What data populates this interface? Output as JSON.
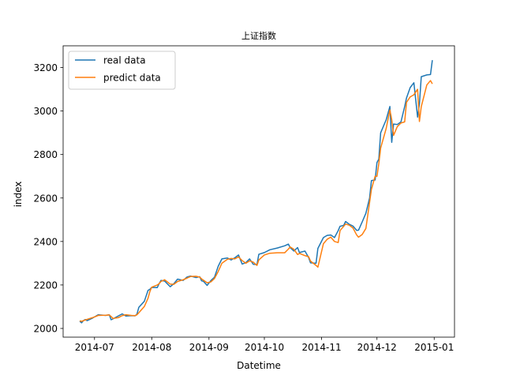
{
  "chart_data": {
    "type": "line",
    "title": "上证指数",
    "xlabel": "Datetime",
    "ylabel": "index",
    "xlim": [
      "2014-06-14",
      "2015-01-12"
    ],
    "ylim": [
      1960,
      3300
    ],
    "x_ticks": [
      {
        "date": "2014-07-01",
        "label": "2014-07"
      },
      {
        "date": "2014-08-01",
        "label": "2014-08"
      },
      {
        "date": "2014-09-01",
        "label": "2014-09"
      },
      {
        "date": "2014-10-01",
        "label": "2014-10"
      },
      {
        "date": "2014-11-01",
        "label": "2014-11"
      },
      {
        "date": "2014-12-01",
        "label": "2014-12"
      },
      {
        "date": "2015-01-01",
        "label": "2015-01"
      }
    ],
    "y_ticks": [
      2000,
      2200,
      2400,
      2600,
      2800,
      3000,
      3200
    ],
    "grid": false,
    "legend": {
      "placement": "upper-left"
    },
    "series": [
      {
        "name": "real data",
        "color": "#1f77b4",
        "points": [
          [
            "2014-06-23",
            2033
          ],
          [
            "2014-06-24",
            2026
          ],
          [
            "2014-06-25",
            2036
          ],
          [
            "2014-06-26",
            2041
          ],
          [
            "2014-06-27",
            2036
          ],
          [
            "2014-06-30",
            2048
          ],
          [
            "2014-07-02",
            2058
          ],
          [
            "2014-07-03",
            2063
          ],
          [
            "2014-07-07",
            2060
          ],
          [
            "2014-07-09",
            2063
          ],
          [
            "2014-07-10",
            2040
          ],
          [
            "2014-07-11",
            2044
          ],
          [
            "2014-07-14",
            2058
          ],
          [
            "2014-07-16",
            2067
          ],
          [
            "2014-07-18",
            2057
          ],
          [
            "2014-07-21",
            2059
          ],
          [
            "2014-07-23",
            2058
          ],
          [
            "2014-07-24",
            2066
          ],
          [
            "2014-07-25",
            2097
          ],
          [
            "2014-07-28",
            2125
          ],
          [
            "2014-07-30",
            2175
          ],
          [
            "2014-07-31",
            2180
          ],
          [
            "2014-08-01",
            2189
          ],
          [
            "2014-08-04",
            2188
          ],
          [
            "2014-08-05",
            2206
          ],
          [
            "2014-08-06",
            2221
          ],
          [
            "2014-08-08",
            2218
          ],
          [
            "2014-08-11",
            2192
          ],
          [
            "2014-08-13",
            2206
          ],
          [
            "2014-08-15",
            2227
          ],
          [
            "2014-08-18",
            2221
          ],
          [
            "2014-08-20",
            2236
          ],
          [
            "2014-08-22",
            2241
          ],
          [
            "2014-08-25",
            2234
          ],
          [
            "2014-08-27",
            2238
          ],
          [
            "2014-08-28",
            2219
          ],
          [
            "2014-08-29",
            2217
          ],
          [
            "2014-08-31",
            2198
          ],
          [
            "2014-09-02",
            2220
          ],
          [
            "2014-09-04",
            2236
          ],
          [
            "2014-09-06",
            2286
          ],
          [
            "2014-09-08",
            2320
          ],
          [
            "2014-09-11",
            2324
          ],
          [
            "2014-09-13",
            2315
          ],
          [
            "2014-09-15",
            2325
          ],
          [
            "2014-09-17",
            2338
          ],
          [
            "2014-09-19",
            2296
          ],
          [
            "2014-09-21",
            2303
          ],
          [
            "2014-09-23",
            2320
          ],
          [
            "2014-09-25",
            2295
          ],
          [
            "2014-09-27",
            2294
          ],
          [
            "2014-09-28",
            2341
          ],
          [
            "2014-10-01",
            2349
          ],
          [
            "2014-10-04",
            2362
          ],
          [
            "2014-10-08",
            2370
          ],
          [
            "2014-10-12",
            2380
          ],
          [
            "2014-10-14",
            2388
          ],
          [
            "2014-10-15",
            2372
          ],
          [
            "2014-10-17",
            2356
          ],
          [
            "2014-10-19",
            2372
          ],
          [
            "2014-10-20",
            2349
          ],
          [
            "2014-10-23",
            2356
          ],
          [
            "2014-10-25",
            2326
          ],
          [
            "2014-10-26",
            2302
          ],
          [
            "2014-10-29",
            2300
          ],
          [
            "2014-10-30",
            2368
          ],
          [
            "2014-11-02",
            2418
          ],
          [
            "2014-11-04",
            2428
          ],
          [
            "2014-11-06",
            2430
          ],
          [
            "2014-11-08",
            2418
          ],
          [
            "2014-11-10",
            2450
          ],
          [
            "2014-11-11",
            2470
          ],
          [
            "2014-11-13",
            2474
          ],
          [
            "2014-11-14",
            2492
          ],
          [
            "2014-11-16",
            2479
          ],
          [
            "2014-11-18",
            2471
          ],
          [
            "2014-11-20",
            2451
          ],
          [
            "2014-11-21",
            2452
          ],
          [
            "2014-11-23",
            2490
          ],
          [
            "2014-11-25",
            2530
          ],
          [
            "2014-11-27",
            2600
          ],
          [
            "2014-11-28",
            2680
          ],
          [
            "2014-11-30",
            2683
          ],
          [
            "2014-12-01",
            2763
          ],
          [
            "2014-12-02",
            2779
          ],
          [
            "2014-12-03",
            2900
          ],
          [
            "2014-12-06",
            2960
          ],
          [
            "2014-12-08",
            3021
          ],
          [
            "2014-12-09",
            2856
          ],
          [
            "2014-12-10",
            2940
          ],
          [
            "2014-12-12",
            2938
          ],
          [
            "2014-12-14",
            2950
          ],
          [
            "2014-12-16",
            3020
          ],
          [
            "2014-12-17",
            3060
          ],
          [
            "2014-12-19",
            3108
          ],
          [
            "2014-12-21",
            3130
          ],
          [
            "2014-12-23",
            2972
          ],
          [
            "2014-12-24",
            3032
          ],
          [
            "2014-12-25",
            3158
          ],
          [
            "2014-12-28",
            3166
          ],
          [
            "2014-12-30",
            3168
          ],
          [
            "2014-12-31",
            3234
          ]
        ]
      },
      {
        "name": "predict data",
        "color": "#ff7f0e",
        "points": [
          [
            "2014-06-23",
            2035
          ],
          [
            "2014-06-24",
            2033
          ],
          [
            "2014-06-25",
            2036
          ],
          [
            "2014-06-26",
            2039
          ],
          [
            "2014-06-27",
            2042
          ],
          [
            "2014-06-30",
            2050
          ],
          [
            "2014-07-02",
            2056
          ],
          [
            "2014-07-03",
            2060
          ],
          [
            "2014-07-07",
            2061
          ],
          [
            "2014-07-09",
            2062
          ],
          [
            "2014-07-10",
            2055
          ],
          [
            "2014-07-11",
            2046
          ],
          [
            "2014-07-14",
            2050
          ],
          [
            "2014-07-16",
            2059
          ],
          [
            "2014-07-18",
            2063
          ],
          [
            "2014-07-21",
            2060
          ],
          [
            "2014-07-23",
            2059
          ],
          [
            "2014-07-24",
            2063
          ],
          [
            "2014-07-25",
            2072
          ],
          [
            "2014-07-28",
            2101
          ],
          [
            "2014-07-30",
            2139
          ],
          [
            "2014-07-31",
            2170
          ],
          [
            "2014-08-01",
            2190
          ],
          [
            "2014-08-04",
            2200
          ],
          [
            "2014-08-05",
            2206
          ],
          [
            "2014-08-06",
            2216
          ],
          [
            "2014-08-08",
            2224
          ],
          [
            "2014-08-11",
            2204
          ],
          [
            "2014-08-13",
            2203
          ],
          [
            "2014-08-15",
            2216
          ],
          [
            "2014-08-18",
            2224
          ],
          [
            "2014-08-20",
            2231
          ],
          [
            "2014-08-22",
            2239
          ],
          [
            "2014-08-25",
            2240
          ],
          [
            "2014-08-27",
            2236
          ],
          [
            "2014-08-28",
            2228
          ],
          [
            "2014-08-29",
            2222
          ],
          [
            "2014-08-31",
            2210
          ],
          [
            "2014-09-02",
            2214
          ],
          [
            "2014-09-04",
            2230
          ],
          [
            "2014-09-06",
            2262
          ],
          [
            "2014-09-08",
            2300
          ],
          [
            "2014-09-11",
            2318
          ],
          [
            "2014-09-13",
            2322
          ],
          [
            "2014-09-15",
            2320
          ],
          [
            "2014-09-17",
            2329
          ],
          [
            "2014-09-19",
            2312
          ],
          [
            "2014-09-21",
            2300
          ],
          [
            "2014-09-23",
            2311
          ],
          [
            "2014-09-25",
            2305
          ],
          [
            "2014-09-27",
            2290
          ],
          [
            "2014-09-28",
            2315
          ],
          [
            "2014-10-01",
            2338
          ],
          [
            "2014-10-04",
            2346
          ],
          [
            "2014-10-08",
            2348
          ],
          [
            "2014-10-12",
            2348
          ],
          [
            "2014-10-14",
            2365
          ],
          [
            "2014-10-15",
            2375
          ],
          [
            "2014-10-17",
            2364
          ],
          [
            "2014-10-19",
            2340
          ],
          [
            "2014-10-20",
            2345
          ],
          [
            "2014-10-23",
            2335
          ],
          [
            "2014-10-25",
            2330
          ],
          [
            "2014-10-26",
            2310
          ],
          [
            "2014-10-29",
            2290
          ],
          [
            "2014-10-30",
            2282
          ],
          [
            "2014-11-02",
            2390
          ],
          [
            "2014-11-04",
            2410
          ],
          [
            "2014-11-06",
            2420
          ],
          [
            "2014-11-08",
            2400
          ],
          [
            "2014-11-10",
            2395
          ],
          [
            "2014-11-11",
            2450
          ],
          [
            "2014-11-13",
            2470
          ],
          [
            "2014-11-14",
            2480
          ],
          [
            "2014-11-16",
            2475
          ],
          [
            "2014-11-18",
            2462
          ],
          [
            "2014-11-20",
            2430
          ],
          [
            "2014-11-21",
            2420
          ],
          [
            "2014-11-23",
            2432
          ],
          [
            "2014-11-25",
            2460
          ],
          [
            "2014-11-27",
            2580
          ],
          [
            "2014-11-28",
            2640
          ],
          [
            "2014-11-30",
            2700
          ],
          [
            "2014-12-01",
            2700
          ],
          [
            "2014-12-02",
            2758
          ],
          [
            "2014-12-03",
            2830
          ],
          [
            "2014-12-06",
            2920
          ],
          [
            "2014-12-08",
            3005
          ],
          [
            "2014-12-09",
            2960
          ],
          [
            "2014-12-10",
            2888
          ],
          [
            "2014-12-12",
            2928
          ],
          [
            "2014-12-14",
            2945
          ],
          [
            "2014-12-16",
            2950
          ],
          [
            "2014-12-17",
            3040
          ],
          [
            "2014-12-19",
            3065
          ],
          [
            "2014-12-21",
            3075
          ],
          [
            "2014-12-23",
            3100
          ],
          [
            "2014-12-24",
            2952
          ],
          [
            "2014-12-25",
            3020
          ],
          [
            "2014-12-28",
            3120
          ],
          [
            "2014-12-30",
            3140
          ],
          [
            "2014-12-31",
            3125
          ]
        ]
      }
    ]
  }
}
